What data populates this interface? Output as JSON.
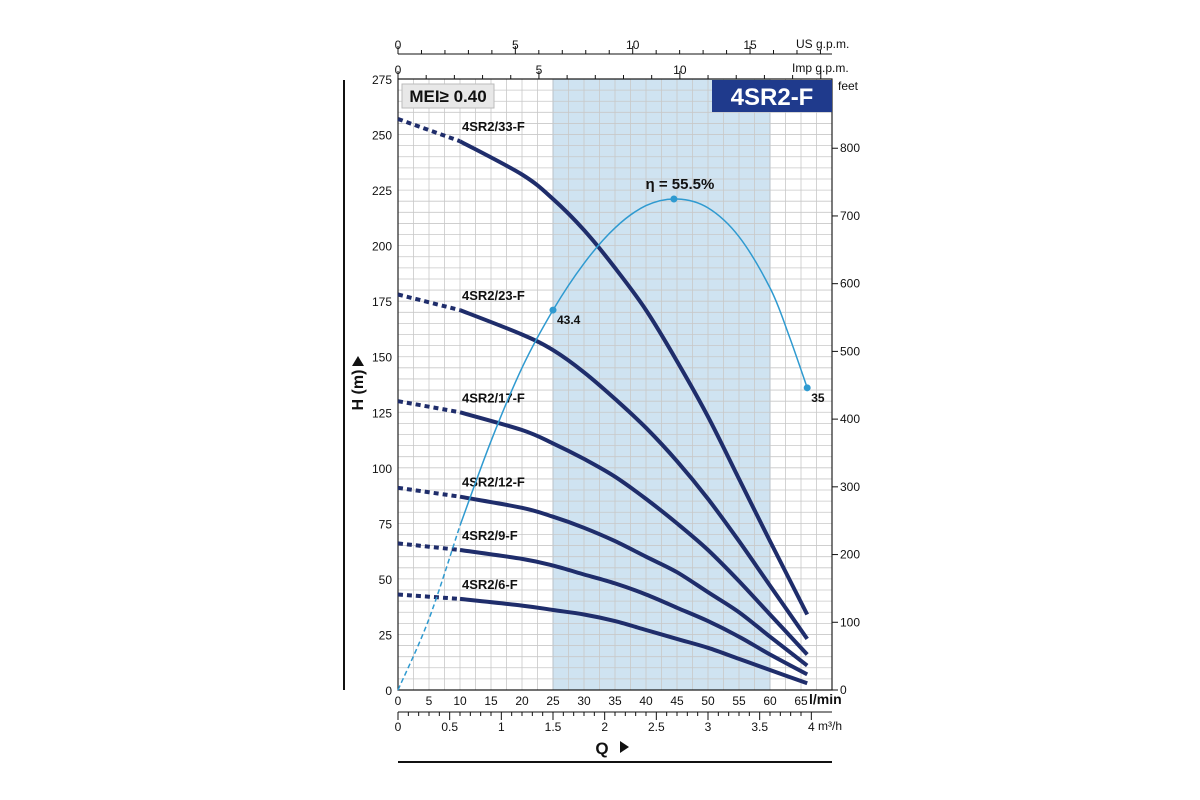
{
  "chart_data": {
    "type": "line",
    "title": "4SR2-F",
    "mei_label": "MEI≥ 0.40",
    "ylabel": "H (m)",
    "ylabel_right": "feet",
    "xlabel": "Q",
    "x_unit_lmin": "l/min",
    "x_unit_m3h": "m³/h",
    "x_unit_us": "US g.p.m.",
    "x_unit_imp": "Imp g.p.m.",
    "xlim": [
      0,
      70
    ],
    "ylim": [
      0,
      275
    ],
    "recommended_range": [
      25,
      60
    ],
    "ticks": {
      "lmin": [
        "0",
        "5",
        "10",
        "15",
        "20",
        "25",
        "30",
        "35",
        "40",
        "45",
        "50",
        "55",
        "60",
        "65"
      ],
      "m3h": [
        "0",
        "0.5",
        "1",
        "1.5",
        "2",
        "2.5",
        "3",
        "3.5",
        "4"
      ],
      "us": [
        "0",
        "5",
        "10",
        "15"
      ],
      "imp": [
        "0",
        "5",
        "10"
      ],
      "h": [
        "0",
        "25",
        "50",
        "75",
        "100",
        "125",
        "150",
        "175",
        "200",
        "225",
        "250",
        "275"
      ],
      "feet": [
        "0",
        "100",
        "200",
        "300",
        "400",
        "500",
        "600",
        "700",
        "800"
      ]
    },
    "series": [
      {
        "name": "4SR2/33-F",
        "dashed": [
          [
            0,
            257
          ],
          [
            10,
            247
          ]
        ],
        "values": [
          [
            10,
            247
          ],
          [
            20,
            232
          ],
          [
            25,
            221
          ],
          [
            30,
            207
          ],
          [
            35,
            190
          ],
          [
            40,
            171
          ],
          [
            45,
            148
          ],
          [
            50,
            123
          ],
          [
            55,
            95
          ],
          [
            60,
            67
          ],
          [
            66,
            34
          ]
        ]
      },
      {
        "name": "4SR2/23-F",
        "dashed": [
          [
            0,
            178
          ],
          [
            10,
            171
          ]
        ],
        "values": [
          [
            10,
            171
          ],
          [
            20,
            160
          ],
          [
            25,
            153
          ],
          [
            30,
            143
          ],
          [
            35,
            131
          ],
          [
            40,
            118
          ],
          [
            45,
            103
          ],
          [
            50,
            86
          ],
          [
            55,
            67
          ],
          [
            60,
            47
          ],
          [
            66,
            23
          ]
        ]
      },
      {
        "name": "4SR2/17-F",
        "dashed": [
          [
            0,
            130
          ],
          [
            10,
            125
          ]
        ],
        "values": [
          [
            10,
            125
          ],
          [
            20,
            117
          ],
          [
            25,
            111
          ],
          [
            30,
            104
          ],
          [
            35,
            96
          ],
          [
            40,
            86
          ],
          [
            45,
            75
          ],
          [
            50,
            63
          ],
          [
            55,
            49
          ],
          [
            60,
            34
          ],
          [
            66,
            16
          ]
        ]
      },
      {
        "name": "4SR2/12-F",
        "dashed": [
          [
            0,
            91
          ],
          [
            10,
            87
          ]
        ],
        "values": [
          [
            10,
            87
          ],
          [
            20,
            82
          ],
          [
            25,
            78
          ],
          [
            30,
            73
          ],
          [
            35,
            67
          ],
          [
            40,
            60
          ],
          [
            45,
            53
          ],
          [
            50,
            44
          ],
          [
            55,
            35
          ],
          [
            60,
            24
          ],
          [
            66,
            11
          ]
        ]
      },
      {
        "name": "4SR2/9-F",
        "dashed": [
          [
            0,
            66
          ],
          [
            10,
            63
          ]
        ],
        "values": [
          [
            10,
            63
          ],
          [
            20,
            59
          ],
          [
            25,
            56
          ],
          [
            30,
            52
          ],
          [
            35,
            48
          ],
          [
            40,
            43
          ],
          [
            45,
            37
          ],
          [
            50,
            31
          ],
          [
            55,
            24
          ],
          [
            60,
            16
          ],
          [
            66,
            7
          ]
        ]
      },
      {
        "name": "4SR2/6-F",
        "dashed": [
          [
            0,
            43
          ],
          [
            10,
            41
          ]
        ],
        "values": [
          [
            10,
            41
          ],
          [
            20,
            38
          ],
          [
            25,
            36
          ],
          [
            30,
            34
          ],
          [
            35,
            31
          ],
          [
            40,
            27
          ],
          [
            45,
            23
          ],
          [
            50,
            19
          ],
          [
            55,
            14
          ],
          [
            60,
            9
          ],
          [
            66,
            3
          ]
        ]
      }
    ],
    "efficiency": {
      "peak_label": "η = 55.5%",
      "points": [
        [
          0,
          0
        ],
        [
          5,
          32
        ],
        [
          10,
          74
        ],
        [
          15,
          112
        ],
        [
          20,
          145
        ],
        [
          25,
          171
        ],
        [
          30,
          192
        ],
        [
          35,
          208
        ],
        [
          40,
          218
        ],
        [
          45,
          221
        ],
        [
          50,
          217
        ],
        [
          55,
          204
        ],
        [
          60,
          181
        ],
        [
          63,
          160
        ],
        [
          66,
          136
        ]
      ],
      "markers": [
        {
          "x": 25,
          "y": 171,
          "label": "43.4"
        },
        {
          "x": 44.5,
          "y": 221,
          "label": ""
        },
        {
          "x": 66,
          "y": 136,
          "label": "35"
        }
      ]
    },
    "colors": {
      "curve": "#1f2d6b",
      "efficiency": "#2f9ad0",
      "band": "#cfe3f1",
      "title_bg": "#1f3a8c",
      "grid": "#c8c8c8"
    }
  }
}
